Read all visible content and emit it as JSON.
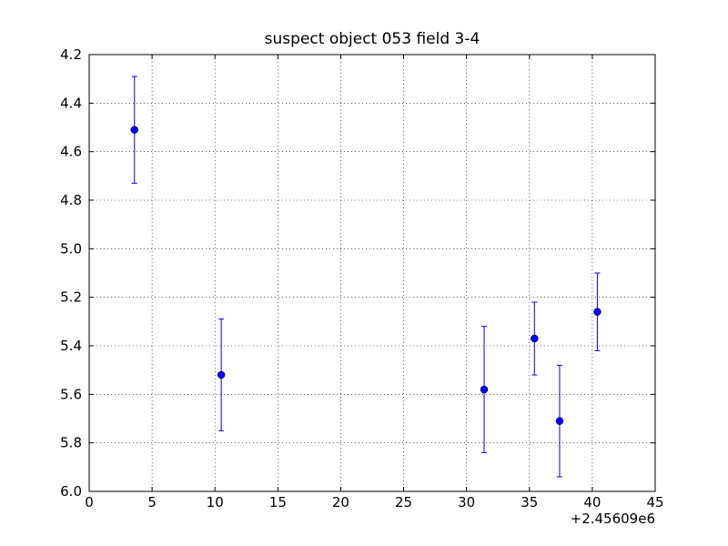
{
  "chart_data": {
    "type": "errorbar",
    "title": "suspect object 053 field 3-4",
    "x": [
      3.6,
      10.5,
      31.4,
      35.4,
      37.4,
      40.4
    ],
    "series": [
      {
        "color": "#0000ff",
        "values": [
          4.51,
          5.52,
          5.58,
          5.37,
          5.71,
          5.26
        ],
        "errors": [
          0.22,
          0.23,
          0.26,
          0.15,
          0.23,
          0.16
        ]
      }
    ],
    "xlim": [
      0,
      45
    ],
    "xticks": [
      0,
      5,
      10,
      15,
      20,
      25,
      30,
      35,
      40,
      45
    ],
    "x_offset_label": "+2.45609e6",
    "ylim": [
      4.2,
      6.0
    ],
    "y_inverted": true,
    "yticks": [
      4.2,
      4.4,
      4.6,
      4.8,
      {
        "value": 5,
        "label": "5.0"
      },
      5.2,
      5.4,
      5.6,
      5.8,
      {
        "value": 6,
        "label": "6.0"
      }
    ],
    "grid": true
  }
}
